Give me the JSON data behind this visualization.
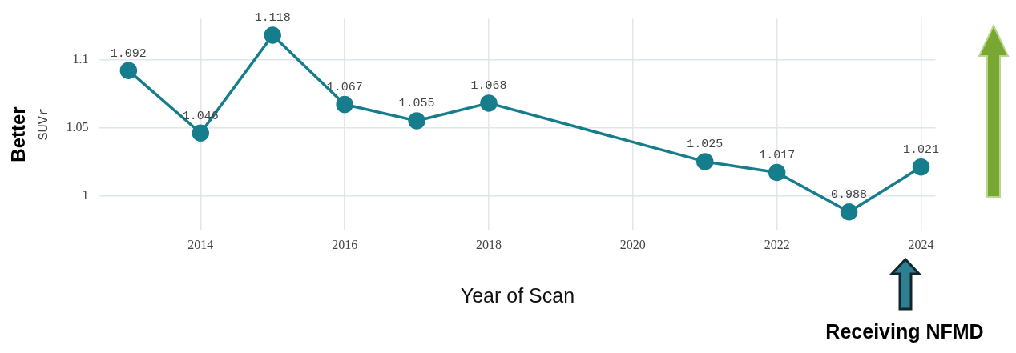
{
  "chart_data": {
    "type": "line",
    "ylabel": "SUVr",
    "xlabel": "Year of Scan",
    "x": [
      2013,
      2014,
      2015,
      2016,
      2017,
      2018,
      2021,
      2022,
      2023,
      2024
    ],
    "series": [
      {
        "color": "#167d8c",
        "values": [
          1.092,
          1.046,
          1.118,
          1.067,
          1.055,
          1.068,
          1.025,
          1.017,
          0.988,
          1.021
        ]
      }
    ],
    "xlim": [
      2012.6,
      2024.2
    ],
    "xticks": [
      2014,
      2016,
      2018,
      2020,
      2022,
      2024
    ],
    "ylim": [
      0.975,
      1.13
    ],
    "yticks": [
      1,
      1.05,
      1.1
    ],
    "grid": true,
    "marker": "circle",
    "line_style": "solid",
    "data_labels": true,
    "legend": false,
    "annotations": [
      "Better",
      "Receiving NFMD"
    ]
  }
}
